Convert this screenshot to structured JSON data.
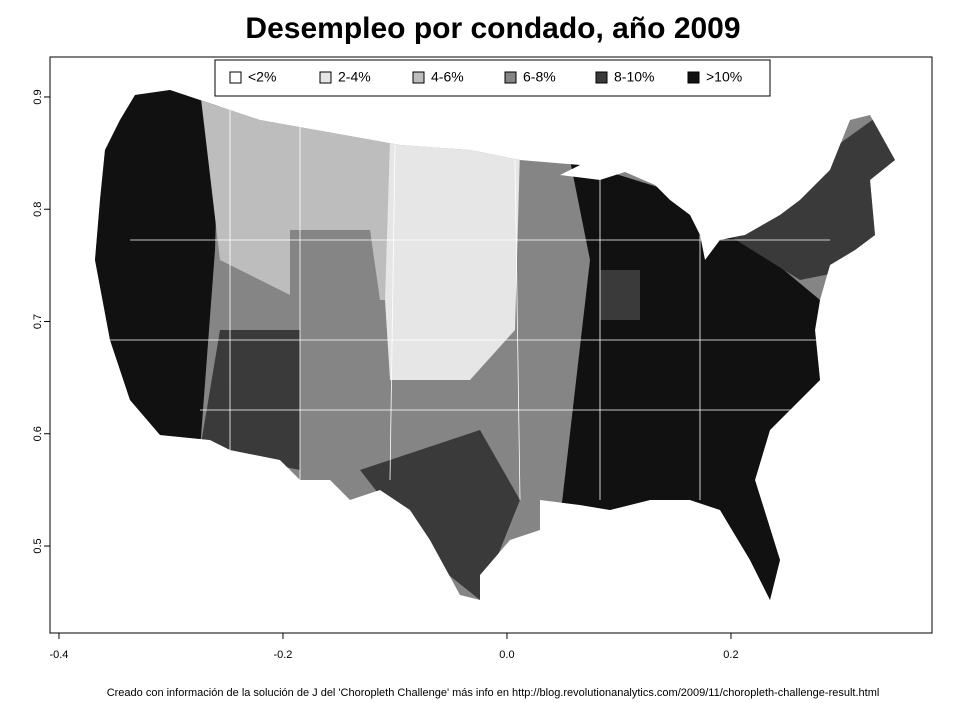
{
  "chart_data": {
    "type": "map",
    "title": "Desempleo por condado, año 2009",
    "legend": {
      "labels": [
        "<2%",
        "2-4%",
        "4-6%",
        "6-8%",
        "8-10%",
        ">10%"
      ],
      "colors": [
        "#ffffff",
        "#e6e6e6",
        "#bdbdbd",
        "#858585",
        "#3a3a3a",
        "#111111"
      ]
    },
    "xlim": [
      -0.408,
      0.3795
    ],
    "ylim": [
      0.4225,
      0.9356
    ],
    "xticks": [
      -0.4,
      -0.2,
      {
        "value": 0,
        "label": "0.0"
      },
      0.2
    ],
    "yticks": [
      0.5,
      0.6,
      0.7,
      0.8,
      0.9
    ],
    "caption": "Creado con información de la solución de J del 'Choropleth Challenge' más info en http://blog.revolutionanalytics.com/2009/11/choropleth-challenge-result.html"
  }
}
